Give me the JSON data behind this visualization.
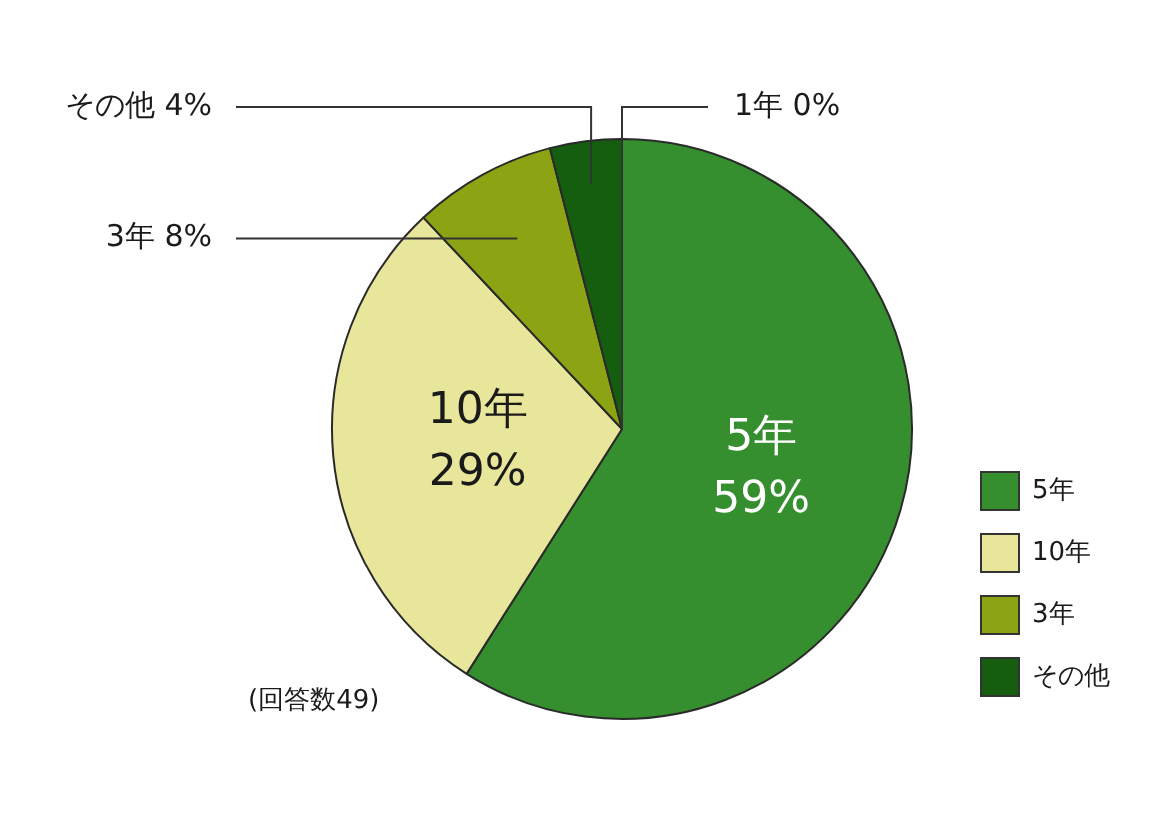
{
  "chart_data": {
    "type": "pie",
    "categories": [
      "5年",
      "10年",
      "3年",
      "その他",
      "1年"
    ],
    "values": [
      59,
      29,
      8,
      4,
      0
    ],
    "colors": [
      "#358f2e",
      "#e8e69a",
      "#8ca314",
      "#155e10",
      null
    ],
    "value_labels": [
      "59%",
      "29%",
      "8%",
      "4%",
      "0%"
    ],
    "legend": "bottom right",
    "annotations": [
      "(回答数49)"
    ]
  }
}
